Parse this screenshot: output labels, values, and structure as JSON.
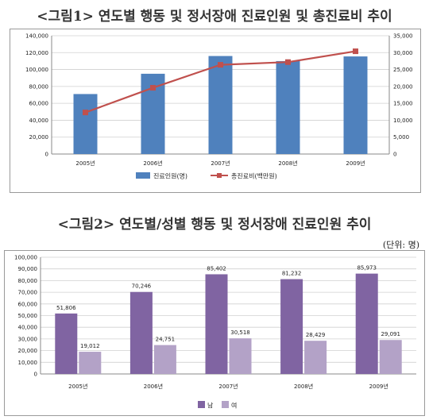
{
  "figure1": {
    "title": "<그림1> 연도별 행동 및 정서장애 진료인원 및 총진료비 추이"
  },
  "figure2": {
    "title": "<그림2> 연도별/성별 행동 및 정서장애 진료인원 추이",
    "unit": "(단위: 명)"
  },
  "colors": {
    "bar_blue": "#4f81bd",
    "line_red": "#c0504d",
    "bar_male": "#8064a2",
    "bar_female": "#b3a2c7"
  },
  "chart_data": [
    {
      "type": "bar",
      "categories": [
        "2005년",
        "2006년",
        "2007년",
        "2008년",
        "2009년"
      ],
      "series": [
        {
          "name": "진료인원(명)",
          "type": "bar",
          "axis": "left",
          "values": [
            71000,
            95000,
            116000,
            110000,
            115500
          ]
        },
        {
          "name": "총진료비(백만원)",
          "type": "line",
          "axis": "right",
          "values": [
            12300,
            19600,
            26400,
            27200,
            30400
          ]
        }
      ],
      "ylim": [
        0,
        140000
      ],
      "yticks": [
        "0",
        "20,000",
        "40,000",
        "60,000",
        "80,000",
        "100,000",
        "120,000",
        "140,000"
      ],
      "y2lim": [
        0,
        35000
      ],
      "y2ticks": [
        "0",
        "5,000",
        "10,000",
        "15,000",
        "20,000",
        "25,000",
        "30,000",
        "35,000"
      ],
      "grid": true,
      "legend": "bottom"
    },
    {
      "type": "bar",
      "categories": [
        "2005년",
        "2006년",
        "2007년",
        "2008년",
        "2009년"
      ],
      "series": [
        {
          "name": "남",
          "values": [
            51806,
            70246,
            85402,
            81232,
            85973
          ],
          "labels": [
            "51,806",
            "70,246",
            "85,402",
            "81,232",
            "85,973"
          ]
        },
        {
          "name": "여",
          "values": [
            19012,
            24751,
            30518,
            28429,
            29091
          ],
          "labels": [
            "19,012",
            "24,751",
            "30,518",
            "28,429",
            "29,091"
          ]
        }
      ],
      "ylim": [
        0,
        100000
      ],
      "yticks": [
        "0",
        "10,000",
        "20,000",
        "30,000",
        "40,000",
        "50,000",
        "60,000",
        "70,000",
        "80,000",
        "90,000",
        "100,000"
      ],
      "grid": true,
      "legend": "bottom"
    }
  ]
}
